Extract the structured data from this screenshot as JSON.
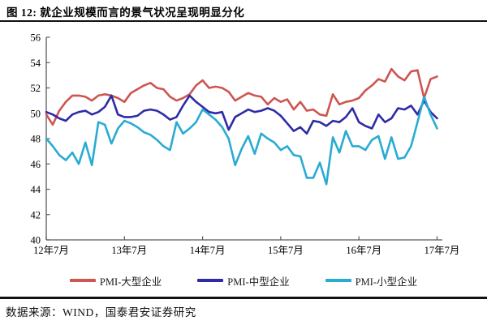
{
  "title": "图 12:  就企业规模而言的景气状况呈现明显分化",
  "footer": {
    "source_label": "数据来源：WIND，国泰君安证券研究"
  },
  "chart_data": {
    "type": "line",
    "n_points": 61,
    "x_start": "2012-07",
    "x_end": "2017-07",
    "x_tick_labels": [
      "12年7月",
      "13年7月",
      "14年7月",
      "15年7月",
      "16年7月",
      "17年7月"
    ],
    "x_tick_positions": [
      0,
      12,
      24,
      36,
      48,
      60
    ],
    "ylim": [
      40,
      56
    ],
    "y_ticks": [
      40,
      42,
      44,
      46,
      48,
      50,
      52,
      54,
      56
    ],
    "grid": false,
    "legend_position": "bottom",
    "axis_color": "#595959",
    "series": [
      {
        "name": "PMI-大型企业",
        "color": "#CE5551",
        "values": [
          49.9,
          49.1,
          50.2,
          50.9,
          51.4,
          51.4,
          51.3,
          51.0,
          51.4,
          51.5,
          51.4,
          51.2,
          50.9,
          51.6,
          51.9,
          52.2,
          52.4,
          52.0,
          51.9,
          51.3,
          51.0,
          51.2,
          51.5,
          52.2,
          52.6,
          52.0,
          52.1,
          52.0,
          51.7,
          51.0,
          51.3,
          51.6,
          51.4,
          51.3,
          50.7,
          51.2,
          50.9,
          51.1,
          50.3,
          50.9,
          50.2,
          50.3,
          49.9,
          49.8,
          51.5,
          50.7,
          50.9,
          51.0,
          51.2,
          51.8,
          52.2,
          52.7,
          52.5,
          53.5,
          52.9,
          52.6,
          53.3,
          53.4,
          51.2,
          52.7,
          52.9
        ]
      },
      {
        "name": "PMI-中型企业",
        "color": "#2E2BA5",
        "values": [
          50.1,
          49.9,
          49.6,
          49.4,
          49.9,
          50.1,
          50.2,
          49.9,
          50.1,
          50.5,
          51.4,
          49.9,
          49.7,
          49.7,
          49.8,
          50.2,
          50.3,
          50.2,
          49.9,
          49.5,
          49.7,
          50.6,
          51.4,
          50.9,
          50.5,
          50.1,
          50.0,
          50.1,
          48.7,
          49.7,
          50.0,
          50.3,
          50.1,
          50.2,
          50.4,
          50.2,
          49.8,
          49.2,
          48.6,
          48.9,
          48.4,
          49.4,
          49.3,
          49.0,
          49.4,
          49.3,
          49.7,
          50.4,
          49.3,
          49.0,
          48.8,
          49.9,
          49.3,
          49.6,
          50.4,
          50.3,
          50.6,
          49.9,
          51.0,
          50.1,
          49.6
        ]
      },
      {
        "name": "PMI-小型企业",
        "color": "#29ABD2",
        "values": [
          48.0,
          47.4,
          46.7,
          46.3,
          46.9,
          46.0,
          47.7,
          45.9,
          49.3,
          49.1,
          47.6,
          48.8,
          49.4,
          49.2,
          48.9,
          48.5,
          48.3,
          47.9,
          47.4,
          47.1,
          49.3,
          48.4,
          48.8,
          49.3,
          50.3,
          49.9,
          49.5,
          48.9,
          48.0,
          45.9,
          47.2,
          48.2,
          46.8,
          48.4,
          48.0,
          47.7,
          47.1,
          47.4,
          46.7,
          46.6,
          44.9,
          44.9,
          46.1,
          44.4,
          48.1,
          46.9,
          48.6,
          47.4,
          47.4,
          47.1,
          47.9,
          48.2,
          46.4,
          48.1,
          46.4,
          46.5,
          47.4,
          49.3,
          51.3,
          49.9,
          48.8
        ]
      }
    ]
  }
}
